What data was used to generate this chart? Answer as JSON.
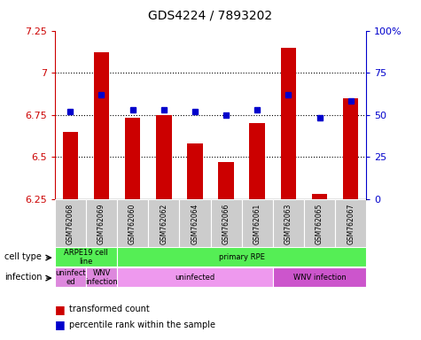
{
  "title": "GDS4224 / 7893202",
  "samples": [
    "GSM762068",
    "GSM762069",
    "GSM762060",
    "GSM762062",
    "GSM762064",
    "GSM762066",
    "GSM762061",
    "GSM762063",
    "GSM762065",
    "GSM762067"
  ],
  "transformed_counts": [
    6.65,
    7.12,
    6.73,
    6.75,
    6.58,
    6.47,
    6.7,
    7.15,
    6.28,
    6.85
  ],
  "percentile_ranks": [
    52,
    62,
    53,
    53,
    52,
    50,
    53,
    62,
    48,
    58
  ],
  "ylim_left": [
    6.25,
    7.25
  ],
  "ylim_right": [
    0,
    100
  ],
  "yticks_left": [
    6.25,
    6.5,
    6.75,
    7.0,
    7.25
  ],
  "yticks_right": [
    0,
    25,
    50,
    75,
    100
  ],
  "ytick_labels_left": [
    "6.25",
    "6.5",
    "6.75",
    "7",
    "7.25"
  ],
  "ytick_labels_right": [
    "0",
    "25",
    "50",
    "75",
    "100%"
  ],
  "hlines": [
    6.5,
    6.75,
    7.0
  ],
  "bar_color": "#cc0000",
  "dot_color": "#0000cc",
  "bar_bottom": 6.25,
  "cell_type_groups": [
    {
      "label": "ARPE19 cell\nline",
      "start": 0,
      "end": 2,
      "color": "#55ee55"
    },
    {
      "label": "primary RPE",
      "start": 2,
      "end": 10,
      "color": "#55ee55"
    }
  ],
  "infection_groups": [
    {
      "label": "uninfect\ned",
      "start": 0,
      "end": 1,
      "color": "#dd88dd"
    },
    {
      "label": "WNV\ninfection",
      "start": 1,
      "end": 2,
      "color": "#dd88dd"
    },
    {
      "label": "uninfected",
      "start": 2,
      "end": 7,
      "color": "#ee99ee"
    },
    {
      "label": "WNV infection",
      "start": 7,
      "end": 10,
      "color": "#cc55cc"
    }
  ],
  "inf_colors": [
    "#dd88dd",
    "#dd88dd",
    "#ee99ee",
    "#cc55cc"
  ],
  "legend_labels": [
    "transformed count",
    "percentile rank within the sample"
  ],
  "legend_colors": [
    "#cc0000",
    "#0000cc"
  ],
  "bg_color": "#ffffff",
  "sample_bg": "#cccccc"
}
